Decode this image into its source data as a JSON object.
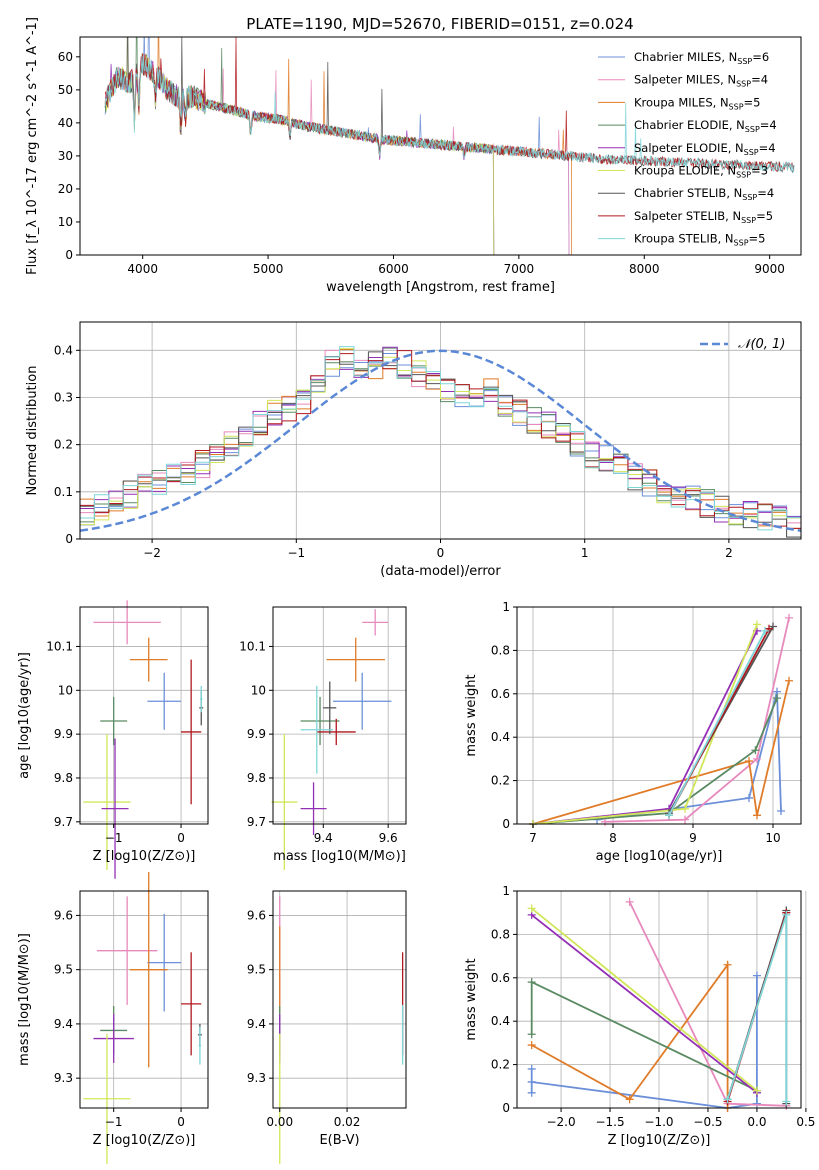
{
  "figure_title": "PLATE=1190, MJD=52670, FIBERID=0151, z=0.024",
  "colors": {
    "Chabrier MILES": "#6b8fd9",
    "Salpeter MILES": "#e889bd",
    "Kroupa MILES": "#e07b28",
    "Chabrier ELODIE": "#5a8a62",
    "Salpeter ELODIE": "#9330b5",
    "Kroupa ELODIE": "#d2e65a",
    "Chabrier STELIB": "#555555",
    "Salpeter STELIB": "#b0191f",
    "Kroupa STELIB": "#7fd6d9",
    "normal": "#5b88d6"
  },
  "chart_data": [
    {
      "id": "spectrum",
      "type": "line",
      "xlabel": "wavelength [Angstrom, rest frame]",
      "ylabel": "Flux [f_λ 10^-17 erg cm^-2 s^-1 A^-1]",
      "xlim": [
        3500,
        9250
      ],
      "ylim": [
        0,
        66
      ],
      "xticks": [
        4000,
        5000,
        6000,
        7000,
        8000,
        9000
      ],
      "yticks": [
        0,
        10,
        20,
        30,
        40,
        50,
        60
      ],
      "legend_position": "top-right",
      "legend": [
        {
          "name": "Chabrier MILES",
          "nssp": "6"
        },
        {
          "name": "Salpeter MILES",
          "nssp": "4"
        },
        {
          "name": "Kroupa MILES",
          "nssp": "5"
        },
        {
          "name": "Chabrier ELODIE",
          "nssp": "4"
        },
        {
          "name": "Salpeter ELODIE",
          "nssp": "4"
        },
        {
          "name": "Kroupa ELODIE",
          "nssp": "3"
        },
        {
          "name": "Chabrier STELIB",
          "nssp": "4"
        },
        {
          "name": "Salpeter STELIB",
          "nssp": "5"
        },
        {
          "name": "Kroupa STELIB",
          "nssp": "5"
        }
      ],
      "continuum": {
        "x": [
          3700,
          3800,
          3900,
          4000,
          4100,
          4200,
          4300,
          4400,
          4500,
          4700,
          4900,
          5100,
          5300,
          5600,
          5900,
          6200,
          6500,
          6800,
          7100,
          7400,
          7700,
          8000,
          8300,
          8600,
          8900,
          9200
        ],
        "y": [
          46,
          54,
          52,
          58,
          55,
          50,
          47,
          48,
          46,
          44,
          42,
          41,
          39,
          37,
          35,
          34,
          33,
          32,
          31,
          30,
          29,
          28.5,
          28,
          27.5,
          27,
          26.5
        ]
      },
      "series_ranges": {
        "Chabrier MILES": [
          3700,
          7400
        ],
        "Salpeter MILES": [
          3700,
          7400
        ],
        "Kroupa MILES": [
          3700,
          7420
        ],
        "Chabrier ELODIE": [
          3700,
          6800
        ],
        "Salpeter ELODIE": [
          3700,
          6800
        ],
        "Kroupa ELODIE": [
          3700,
          6800
        ],
        "Chabrier STELIB": [
          3700,
          9200
        ],
        "Salpeter STELIB": [
          3700,
          9200
        ],
        "Kroupa STELIB": [
          3700,
          9200
        ]
      }
    },
    {
      "id": "residuals",
      "type": "histogram",
      "xlabel": "(data-model)/error",
      "ylabel": "Normed distribution",
      "xlim": [
        -2.5,
        2.5
      ],
      "ylim": [
        0,
        0.46
      ],
      "xticks": [
        -2,
        -1,
        0,
        1,
        2
      ],
      "yticks": [
        0.0,
        0.1,
        0.2,
        0.3,
        0.4
      ],
      "grid": true,
      "legend_position": "top-right",
      "legend_label": "𝒩(0, 1)",
      "bins": [
        -2.5,
        -2.4,
        -2.3,
        -2.2,
        -2.1,
        -2.0,
        -1.9,
        -1.8,
        -1.7,
        -1.6,
        -1.5,
        -1.4,
        -1.3,
        -1.2,
        -1.1,
        -1.0,
        -0.9,
        -0.8,
        -0.7,
        -0.6,
        -0.5,
        -0.4,
        -0.3,
        -0.2,
        -0.1,
        0.0,
        0.1,
        0.2,
        0.3,
        0.4,
        0.5,
        0.6,
        0.7,
        0.8,
        0.9,
        1.0,
        1.1,
        1.2,
        1.3,
        1.4,
        1.5,
        1.6,
        1.7,
        1.8,
        1.9,
        2.0,
        2.1,
        2.2,
        2.3,
        2.4,
        2.5
      ],
      "mean_heights": [
        0.06,
        0.07,
        0.08,
        0.095,
        0.11,
        0.12,
        0.13,
        0.14,
        0.16,
        0.18,
        0.2,
        0.22,
        0.25,
        0.27,
        0.28,
        0.29,
        0.32,
        0.37,
        0.38,
        0.36,
        0.37,
        0.39,
        0.37,
        0.35,
        0.33,
        0.32,
        0.31,
        0.3,
        0.31,
        0.29,
        0.27,
        0.25,
        0.24,
        0.22,
        0.2,
        0.18,
        0.17,
        0.15,
        0.13,
        0.12,
        0.1,
        0.09,
        0.085,
        0.075,
        0.065,
        0.055,
        0.05,
        0.045,
        0.04,
        0.03
      ],
      "normal_curve": {
        "mu": 0,
        "sigma": 1
      }
    },
    {
      "id": "age_vs_Z",
      "type": "errorbar",
      "xlabel": "Z [log10(Z/Z⊙)]",
      "ylabel": "age  [log10(age/yr)]",
      "xlim": [
        -1.5,
        0.4
      ],
      "ylim": [
        9.695,
        10.19
      ],
      "xticks": [
        -1,
        0
      ],
      "xticklabels": [
        "−1",
        "0"
      ],
      "yticks": [
        9.7,
        9.8,
        9.9,
        10.0,
        10.1
      ],
      "grid": true,
      "points": [
        {
          "series": "Salpeter MILES",
          "x": -0.8,
          "xerr": 0.5,
          "y": 10.155,
          "yerr": 0.05
        },
        {
          "series": "Kroupa MILES",
          "x": -0.48,
          "xerr": 0.28,
          "y": 10.07,
          "yerr": 0.05
        },
        {
          "series": "Chabrier MILES",
          "x": -0.25,
          "xerr": 0.25,
          "y": 9.975,
          "yerr": 0.065
        },
        {
          "series": "Chabrier ELODIE",
          "x": -1.0,
          "xerr": 0.2,
          "y": 9.93,
          "yerr": 0.055
        },
        {
          "series": "Kroupa ELODIE",
          "x": -1.1,
          "xerr": 0.35,
          "y": 9.745,
          "yerr": 0.155
        },
        {
          "series": "Salpeter ELODIE",
          "x": -0.98,
          "xerr": 0.2,
          "y": 9.73,
          "yerr": 0.16
        },
        {
          "series": "Salpeter STELIB",
          "x": 0.15,
          "xerr": 0.15,
          "y": 9.905,
          "yerr": 0.165
        },
        {
          "series": "Chabrier STELIB",
          "x": 0.3,
          "xerr": 0.03,
          "y": 9.96,
          "yerr": 0.04
        },
        {
          "series": "Kroupa STELIB",
          "x": 0.3,
          "xerr": 0.02,
          "y": 9.98,
          "yerr": 0.03
        }
      ]
    },
    {
      "id": "age_vs_mass",
      "type": "errorbar",
      "xlabel": "mass [log10(M/M⊙)]",
      "ylabel": "",
      "xlim": [
        9.245,
        9.655
      ],
      "ylim": [
        9.695,
        10.19
      ],
      "xticks": [
        9.4,
        9.6
      ],
      "yticks": [
        9.7,
        9.8,
        9.9,
        10.0,
        10.1
      ],
      "grid": true,
      "points": [
        {
          "series": "Salpeter MILES",
          "x": 9.56,
          "xerr": 0.04,
          "y": 10.155,
          "yerr": 0.03
        },
        {
          "series": "Kroupa MILES",
          "x": 9.5,
          "xerr": 0.09,
          "y": 10.07,
          "yerr": 0.05
        },
        {
          "series": "Chabrier MILES",
          "x": 9.52,
          "xerr": 0.09,
          "y": 9.975,
          "yerr": 0.065
        },
        {
          "series": "Chabrier ELODIE",
          "x": 9.39,
          "xerr": 0.06,
          "y": 9.93,
          "yerr": 0.055
        },
        {
          "series": "Kroupa ELODIE",
          "x": 9.28,
          "xerr": 0.04,
          "y": 9.745,
          "yerr": 0.155
        },
        {
          "series": "Salpeter ELODIE",
          "x": 9.37,
          "xerr": 0.04,
          "y": 9.73,
          "yerr": 0.06
        },
        {
          "series": "Salpeter STELIB",
          "x": 9.44,
          "xerr": 0.06,
          "y": 9.905,
          "yerr": 0.03
        },
        {
          "series": "Chabrier STELIB",
          "x": 9.42,
          "xerr": 0.02,
          "y": 9.96,
          "yerr": 0.06
        },
        {
          "series": "Kroupa STELIB",
          "x": 9.38,
          "xerr": 0.05,
          "y": 9.91,
          "yerr": 0.1
        }
      ]
    },
    {
      "id": "weight_vs_age",
      "type": "line",
      "xlabel": "age  [log10(age/yr)]",
      "ylabel": "mass weight",
      "xlim": [
        6.8,
        10.35
      ],
      "ylim": [
        0,
        1
      ],
      "xticks": [
        7,
        8,
        9,
        10
      ],
      "yticks": [
        0.0,
        0.2,
        0.4,
        0.6,
        0.8,
        1.0
      ],
      "grid": true,
      "series": [
        {
          "name": "Chabrier MILES",
          "x": [
            7.8,
            9.7,
            10.05,
            10.1
          ],
          "y": [
            0.02,
            0.12,
            0.61,
            0.06
          ]
        },
        {
          "name": "Salpeter MILES",
          "x": [
            7.9,
            8.9,
            9.8,
            10.2
          ],
          "y": [
            0.01,
            0.02,
            0.3,
            0.95
          ]
        },
        {
          "name": "Kroupa MILES",
          "x": [
            7.0,
            9.7,
            9.8,
            10.2
          ],
          "y": [
            0.0,
            0.29,
            0.04,
            0.66
          ]
        },
        {
          "name": "Chabrier ELODIE",
          "x": [
            7.0,
            8.7,
            9.78,
            10.05
          ],
          "y": [
            0.0,
            0.05,
            0.34,
            0.58
          ]
        },
        {
          "name": "Salpeter ELODIE",
          "x": [
            7.0,
            8.7,
            9.8
          ],
          "y": [
            0.0,
            0.07,
            0.89
          ]
        },
        {
          "name": "Kroupa ELODIE",
          "x": [
            7.0,
            8.9,
            9.8
          ],
          "y": [
            0.0,
            0.07,
            0.92
          ]
        },
        {
          "name": "Chabrier STELIB",
          "x": [
            8.7,
            10.0
          ],
          "y": [
            0.05,
            0.91
          ]
        },
        {
          "name": "Salpeter STELIB",
          "x": [
            8.7,
            9.95
          ],
          "y": [
            0.04,
            0.9
          ]
        },
        {
          "name": "Kroupa STELIB",
          "x": [
            8.7,
            9.9
          ],
          "y": [
            0.04,
            0.89
          ]
        }
      ]
    },
    {
      "id": "mass_vs_Z",
      "type": "errorbar",
      "xlabel": "Z [log10(Z/Z⊙)]",
      "ylabel": "mass [log10(M/M⊙)]",
      "xlim": [
        -1.5,
        0.4
      ],
      "ylim": [
        9.245,
        9.645
      ],
      "xticks": [
        -1,
        0
      ],
      "xticklabels": [
        "−1",
        "0"
      ],
      "yticks": [
        9.3,
        9.4,
        9.5,
        9.6
      ],
      "grid": true,
      "points": [
        {
          "series": "Salpeter MILES",
          "x": -0.8,
          "xerr": 0.45,
          "y": 9.535,
          "yerr": 0.1
        },
        {
          "series": "Chabrier MILES",
          "x": -0.25,
          "xerr": 0.25,
          "y": 9.513,
          "yerr": 0.09
        },
        {
          "series": "Kroupa MILES",
          "x": -0.48,
          "xerr": 0.28,
          "y": 9.5,
          "yerr": 0.18
        },
        {
          "series": "Chabrier ELODIE",
          "x": -1.0,
          "xerr": 0.2,
          "y": 9.388,
          "yerr": 0.045
        },
        {
          "series": "Salpeter ELODIE",
          "x": -1.0,
          "xerr": 0.3,
          "y": 9.373,
          "yerr": 0.045
        },
        {
          "series": "Kroupa ELODIE",
          "x": -1.1,
          "xerr": 0.35,
          "y": 9.262,
          "yerr": 0.12
        },
        {
          "series": "Salpeter STELIB",
          "x": 0.15,
          "xerr": 0.15,
          "y": 9.437,
          "yerr": 0.095
        },
        {
          "series": "Chabrier STELIB",
          "x": 0.28,
          "xerr": 0.03,
          "y": 9.38,
          "yerr": 0.02
        },
        {
          "series": "Kroupa STELIB",
          "x": 0.28,
          "xerr": 0.02,
          "y": 9.36,
          "yerr": 0.035
        }
      ]
    },
    {
      "id": "mass_vs_ebv",
      "type": "errorbar",
      "xlabel": "E(B-V)",
      "ylabel": "",
      "xlim": [
        -0.002,
        0.0375
      ],
      "ylim": [
        9.245,
        9.645
      ],
      "xticks": [
        0.0,
        0.02
      ],
      "xticklabels": [
        "0.00",
        "0.02"
      ],
      "yticks": [
        9.3,
        9.4,
        9.5,
        9.6
      ],
      "grid": true,
      "points": [
        {
          "series": "Salpeter MILES",
          "x": 0.0,
          "xerr": 0,
          "y": 9.535,
          "yerr": 0.1
        },
        {
          "series": "Kroupa MILES",
          "x": 0.0,
          "xerr": 0,
          "y": 9.5,
          "yerr": 0.08
        },
        {
          "series": "Chabrier ELODIE",
          "x": 0.0,
          "xerr": 0,
          "y": 9.388,
          "yerr": 0.045
        },
        {
          "series": "Salpeter ELODIE",
          "x": 0.0,
          "xerr": 0,
          "y": 9.373,
          "yerr": 0.045
        },
        {
          "series": "Kroupa ELODIE",
          "x": 0.0,
          "xerr": 0,
          "y": 9.262,
          "yerr": 0.12
        },
        {
          "series": "Salpeter STELIB",
          "x": 0.0365,
          "xerr": 0,
          "y": 9.437,
          "yerr": 0.095
        },
        {
          "series": "Kroupa STELIB",
          "x": 0.0365,
          "xerr": 0,
          "y": 9.38,
          "yerr": 0.055
        }
      ]
    },
    {
      "id": "weight_vs_Z",
      "type": "line",
      "xlabel": "Z [log10(Z/Z⊙)]",
      "ylabel": "mass weight",
      "xlim": [
        -2.45,
        0.45
      ],
      "ylim": [
        0,
        1
      ],
      "xticks": [
        -2.0,
        -1.5,
        -1.0,
        -0.5,
        0.0,
        0.5
      ],
      "xticklabels": [
        "−2.0",
        "−1.5",
        "−1.0",
        "−0.5",
        "0.0",
        "0.5"
      ],
      "yticks": [
        0.0,
        0.2,
        0.4,
        0.6,
        0.8,
        1.0
      ],
      "grid": true,
      "series": [
        {
          "name": "Chabrier MILES",
          "x": [
            -2.3,
            -2.3,
            -2.3,
            -0.3,
            0.0,
            0.0
          ],
          "y": [
            0.07,
            0.18,
            0.12,
            0.0,
            0.02,
            0.61
          ]
        },
        {
          "name": "Salpeter MILES",
          "x": [
            -1.3,
            -0.3,
            0.3
          ],
          "y": [
            0.95,
            0.02,
            0.01
          ]
        },
        {
          "name": "Kroupa MILES",
          "x": [
            -2.3,
            -1.3,
            -0.3,
            -0.3
          ],
          "y": [
            0.29,
            0.04,
            0.66,
            0.0
          ]
        },
        {
          "name": "Chabrier ELODIE",
          "x": [
            -2.3,
            -2.3,
            0.0
          ],
          "y": [
            0.34,
            0.58,
            0.08
          ]
        },
        {
          "name": "Salpeter ELODIE",
          "x": [
            -2.3,
            0.0
          ],
          "y": [
            0.89,
            0.07
          ]
        },
        {
          "name": "Kroupa ELODIE",
          "x": [
            -2.3,
            0.0
          ],
          "y": [
            0.92,
            0.08
          ]
        },
        {
          "name": "Chabrier STELIB",
          "x": [
            -0.3,
            0.3,
            0.3
          ],
          "y": [
            0.04,
            0.91,
            0.02
          ]
        },
        {
          "name": "Salpeter STELIB",
          "x": [
            -0.3,
            0.3
          ],
          "y": [
            0.03,
            0.9
          ]
        },
        {
          "name": "Kroupa STELIB",
          "x": [
            -0.3,
            0.3,
            0.3
          ],
          "y": [
            0.04,
            0.89,
            0.03
          ]
        }
      ]
    }
  ]
}
